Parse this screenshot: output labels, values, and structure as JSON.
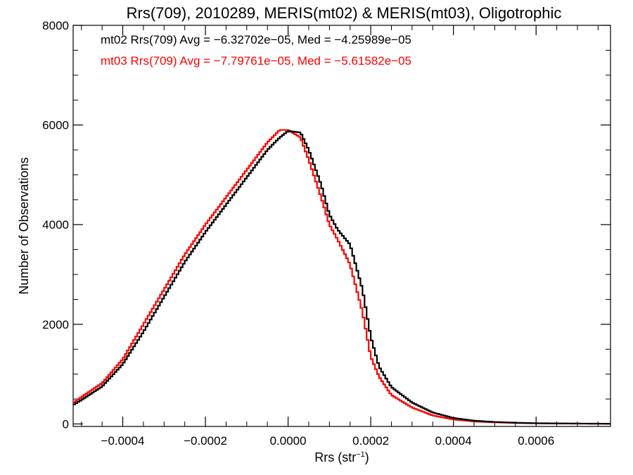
{
  "chart_data": {
    "type": "line",
    "step": true,
    "title": "Rrs(709), 2010289, MERIS(mt02) & MERIS(mt03), Oligotrophic",
    "xlabel_main": "Rrs (str",
    "xlabel_sup": "−1",
    "xlabel_close": ")",
    "ylabel": "Number of Observations",
    "xlim": [
      -0.00052,
      0.00078
    ],
    "ylim": [
      -50,
      8000
    ],
    "x_ticks": [
      -0.0004,
      -0.0002,
      0.0,
      0.0002,
      0.0004,
      0.0006
    ],
    "x_tick_labels": [
      "−0.0004",
      "−0.0002",
      "0.0000",
      "0.0002",
      "0.0004",
      "0.0006"
    ],
    "y_ticks": [
      0,
      2000,
      4000,
      6000,
      8000
    ],
    "y_tick_labels": [
      "0",
      "2000",
      "4000",
      "6000",
      "8000"
    ],
    "grid": false,
    "legend_placement": "top-left",
    "annotations": [
      "mt02 Rrs(709) Avg = −6.32702e−05, Med = −4.25989e−05",
      "mt03 Rrs(709) Avg = −7.79761e−05, Med = −5.61582e−05"
    ],
    "series": [
      {
        "name": "mt02",
        "color": "#000000",
        "x": [
          -0.00052,
          -0.0005,
          -0.00045,
          -0.0004,
          -0.00035,
          -0.0003,
          -0.00025,
          -0.0002,
          -0.00015,
          -0.0001,
          -5e-05,
          -2e-05,
          0.0,
          3e-05,
          5e-05,
          8e-05,
          0.0001,
          0.00012,
          0.00015,
          0.00018,
          0.0002,
          0.00022,
          0.00025,
          0.0003,
          0.00035,
          0.0004,
          0.00045,
          0.0005,
          0.00055,
          0.0006,
          0.0007,
          0.00078
        ],
        "y": [
          380,
          480,
          750,
          1200,
          1850,
          2550,
          3250,
          3850,
          4400,
          4950,
          5500,
          5750,
          5880,
          5850,
          5500,
          4800,
          4200,
          3900,
          3600,
          2700,
          1750,
          1150,
          740,
          430,
          230,
          120,
          65,
          40,
          25,
          15,
          8,
          5
        ]
      },
      {
        "name": "mt03",
        "color": "#ff0000",
        "x": [
          -0.00052,
          -0.0005,
          -0.00045,
          -0.0004,
          -0.00035,
          -0.0003,
          -0.00025,
          -0.0002,
          -0.00015,
          -0.0001,
          -5e-05,
          -2e-05,
          0.0,
          3e-05,
          5e-05,
          8e-05,
          0.0001,
          0.00012,
          0.00015,
          0.00018,
          0.0002,
          0.00022,
          0.00025,
          0.0003,
          0.00035,
          0.0004,
          0.00045,
          0.0005,
          0.00055,
          0.0006,
          0.0007,
          0.00078
        ],
        "y": [
          420,
          540,
          820,
          1300,
          2000,
          2700,
          3400,
          4000,
          4550,
          5100,
          5650,
          5900,
          5900,
          5750,
          5300,
          4550,
          4000,
          3700,
          3200,
          2250,
          1350,
          950,
          580,
          330,
          170,
          90,
          50,
          32,
          20,
          12,
          6,
          4
        ]
      }
    ]
  }
}
